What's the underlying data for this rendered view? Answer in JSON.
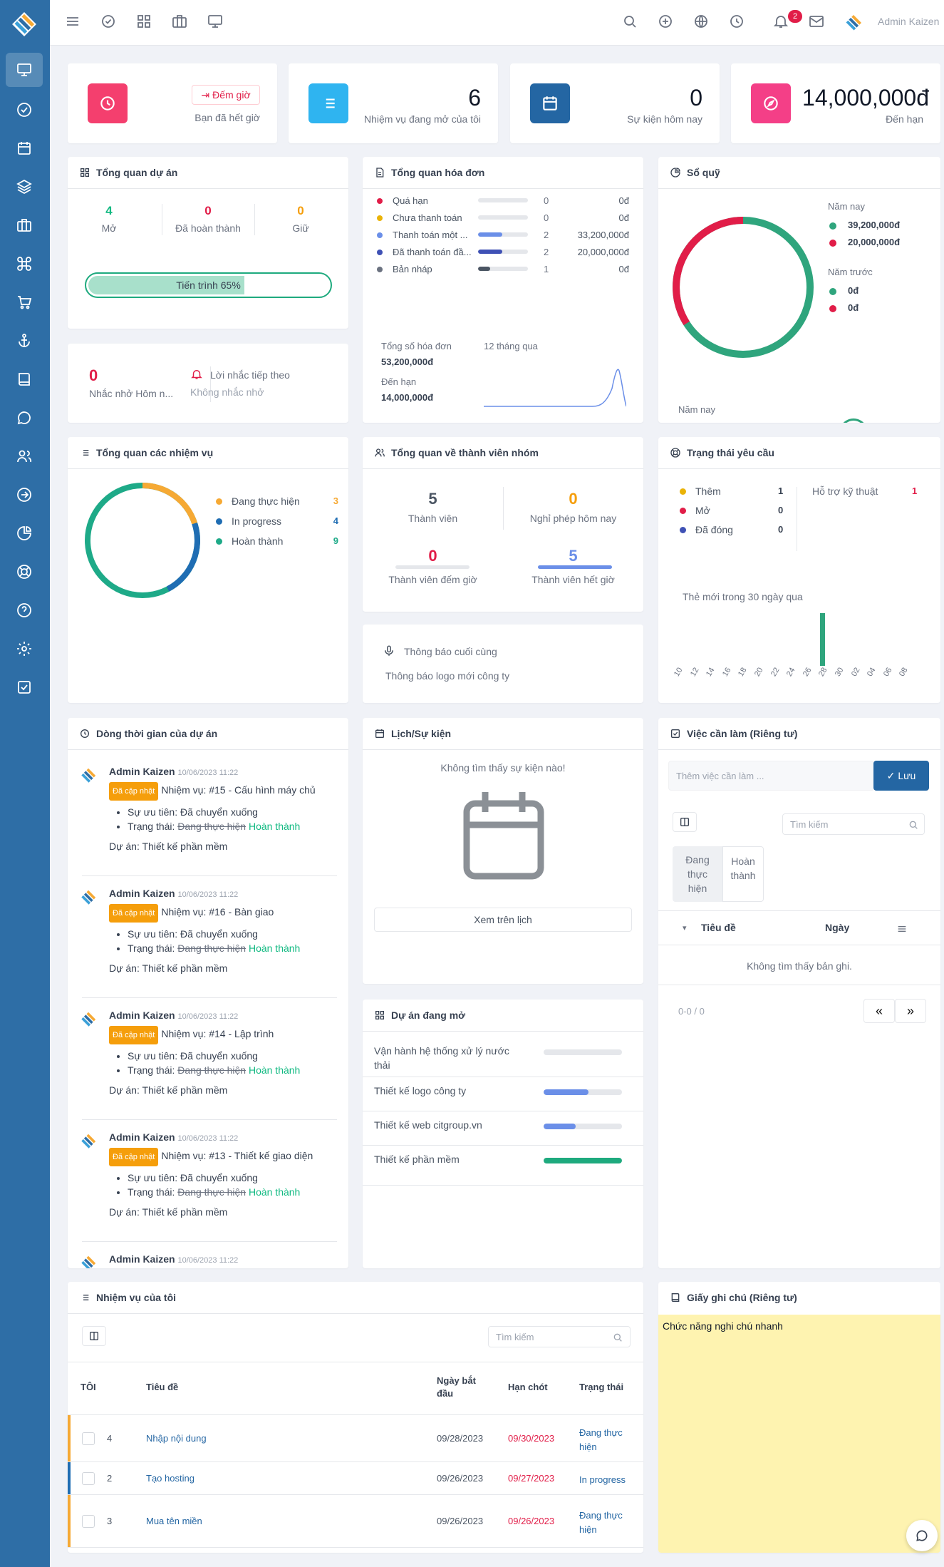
{
  "header": {
    "admin_name": "Admin Kaizen",
    "notification_count": "2"
  },
  "stats": {
    "timer": {
      "button": "Đếm giờ",
      "label": "Bạn đã hết giờ"
    },
    "open_tasks": {
      "value": "6",
      "label": "Nhiệm vụ đang mở của tôi"
    },
    "events_today": {
      "value": "0",
      "label": "Sự kiện hôm nay"
    },
    "due": {
      "value": "14,000,000đ",
      "label": "Đến hạn"
    }
  },
  "project_overview": {
    "title": "Tổng quan dự án",
    "open": {
      "value": "4",
      "label": "Mở"
    },
    "done": {
      "value": "0",
      "label": "Đã hoàn thành"
    },
    "hold": {
      "value": "0",
      "label": "Giữ"
    },
    "progress_label": "Tiến trình 65%",
    "progress": 65
  },
  "reminders": {
    "count": "0",
    "label": "Nhắc nhở Hôm n...",
    "next_title": "Lời nhắc tiếp theo",
    "next_value": "Không nhắc nhở"
  },
  "invoice_overview": {
    "title": "Tổng quan hóa đơn",
    "rows": [
      {
        "label": "Quá hạn",
        "count": "0",
        "amount": "0đ",
        "color": "#e11d48",
        "fill": 0,
        "bar": "#e11d48"
      },
      {
        "label": "Chưa thanh toán",
        "count": "0",
        "amount": "0đ",
        "color": "#eab308",
        "fill": 0,
        "bar": "#eab308"
      },
      {
        "label": "Thanh toán một ...",
        "count": "2",
        "amount": "33,200,000đ",
        "color": "#6b8fe8",
        "fill": 0.48,
        "bar": "#6b8fe8"
      },
      {
        "label": "Đã thanh toán đầ...",
        "count": "2",
        "amount": "20,000,000đ",
        "color": "#3f51b5",
        "fill": 0.48,
        "bar": "#3f51b5"
      },
      {
        "label": "Bản nháp",
        "count": "1",
        "amount": "0đ",
        "color": "#6b7280",
        "fill": 0.24,
        "bar": "#4b5563"
      }
    ],
    "total_label": "Tổng số hóa đơn",
    "total_value": "53,200,000đ",
    "period_label": "12 tháng qua",
    "due_label": "Đến hạn",
    "due_value": "14,000,000đ"
  },
  "cash_book": {
    "title": "Sổ quỹ",
    "this_year_label": "Năm nay",
    "this_year_in": "39,200,000đ",
    "this_year_out": "20,000,000đ",
    "last_year_label": "Năm trước",
    "last_year_in": "0đ",
    "last_year_out": "0đ",
    "footer_label": "Năm nay",
    "in_color": "#2fa57d",
    "out_color": "#e11d48"
  },
  "task_overview": {
    "title": "Tổng quan các nhiệm vụ",
    "items": [
      {
        "label": "Đang thực hiện",
        "value": "3",
        "color": "#f6a934"
      },
      {
        "label": "In progress",
        "value": "4",
        "color": "#1f6db3"
      },
      {
        "label": "Hoàn thành",
        "value": "9",
        "color": "#1eaa88"
      }
    ]
  },
  "team_overview": {
    "title": "Tổng quan về thành viên nhóm",
    "members": {
      "value": "5",
      "label": "Thành viên"
    },
    "leave": {
      "value": "0",
      "label": "Nghỉ phép hôm nay"
    },
    "clocked_in": {
      "value": "0",
      "label": "Thành viên đếm giờ"
    },
    "clocked_out": {
      "value": "5",
      "label": "Thành viên hết giờ"
    }
  },
  "announcement": {
    "title": "Thông báo cuối cùng",
    "text": "Thông báo logo mới công ty"
  },
  "ticket_status": {
    "title": "Trạng thái yêu cầu",
    "items": [
      {
        "label": "Thêm",
        "value": "1",
        "color": "#eab308"
      },
      {
        "label": "Mở",
        "value": "0",
        "color": "#e11d48"
      },
      {
        "label": "Đã đóng",
        "value": "0",
        "color": "#3f51b5"
      }
    ],
    "type_label": "Hỗ trợ kỹ thuật",
    "type_value": "1",
    "chart_caption": "Thẻ mới trong 30 ngày qua",
    "days": [
      "10",
      "12",
      "14",
      "16",
      "18",
      "20",
      "22",
      "24",
      "26",
      "28",
      "30",
      "02",
      "04",
      "06",
      "08"
    ]
  },
  "timeline": {
    "title": "Dòng thời gian của dự án",
    "entries": [
      {
        "user": "Admin Kaizen",
        "time": "10/06/2023 11:22",
        "tag": "Đã cập nhật",
        "task": "Nhiệm vụ: #15 - Cấu hình máy chủ",
        "priority": "Sự ưu tiên: Đã chuyển xuống",
        "status_prefix": "Trạng thái:",
        "status_old": "Đang thực hiện",
        "status_new": "Hoàn thành",
        "project": "Dự án: Thiết kế phần mềm"
      },
      {
        "user": "Admin Kaizen",
        "time": "10/06/2023 11:22",
        "tag": "Đã cập nhật",
        "task": "Nhiệm vụ: #16 - Bàn giao",
        "priority": "Sự ưu tiên: Đã chuyển xuống",
        "status_prefix": "Trạng thái:",
        "status_old": "Đang thực hiện",
        "status_new": "Hoàn thành",
        "project": "Dự án: Thiết kế phần mềm"
      },
      {
        "user": "Admin Kaizen",
        "time": "10/06/2023 11:22",
        "tag": "Đã cập nhật",
        "task": "Nhiệm vụ: #14 - Lập trình",
        "priority": "Sự ưu tiên: Đã chuyển xuống",
        "status_prefix": "Trạng thái:",
        "status_old": "Đang thực hiện",
        "status_new": "Hoàn thành",
        "project": "Dự án: Thiết kế phần mềm"
      },
      {
        "user": "Admin Kaizen",
        "time": "10/06/2023 11:22",
        "tag": "Đã cập nhật",
        "task": "Nhiệm vụ: #13 - Thiết kế giao diện",
        "priority": "Sự ưu tiên: Đã chuyển xuống",
        "status_prefix": "Trạng thái:",
        "status_old": "Đang thực hiện",
        "status_new": "Hoàn thành",
        "project": "Dự án: Thiết kế phần mềm"
      }
    ],
    "partial_user": "Admin Kaizen",
    "partial_time": "10/06/2023 11:22"
  },
  "events": {
    "title": "Lịch/Sự kiện",
    "empty": "Không tìm thấy sự kiện nào!",
    "button": "Xem trên lịch"
  },
  "open_projects": {
    "title": "Dự án đang mở",
    "items": [
      {
        "name": "Vận hành hệ thống xử lý nước thải",
        "progress": 0,
        "color": "#6b8fe8"
      },
      {
        "name": "Thiết kế logo công ty",
        "progress": 0.57,
        "color": "#6b8fe8"
      },
      {
        "name": "Thiết kế web citgroup.vn",
        "progress": 0.41,
        "color": "#6b8fe8"
      },
      {
        "name": "Thiết kế phần mềm",
        "progress": 1,
        "color": "#1eaa7e"
      }
    ]
  },
  "todo": {
    "title": "Việc cần làm (Riêng tư)",
    "placeholder": "Thêm việc cần làm ...",
    "save": "Lưu",
    "search_placeholder": "Tìm kiếm",
    "filter_active": "Đang thực hiện",
    "filter_done": "Hoàn thành",
    "col_title": "Tiêu đề",
    "col_date": "Ngày",
    "empty": "Không tìm thấy bản ghi.",
    "pager": "0-0 / 0",
    "prev": "«",
    "next": "»"
  },
  "my_tasks": {
    "title": "Nhiệm vụ của tôi",
    "search_placeholder": "Tìm kiếm",
    "columns": {
      "id": "TÔI",
      "title": "Tiêu đề",
      "start": "Ngày bắt đầu",
      "deadline": "Hạn chót",
      "status": "Trạng thái"
    },
    "rows": [
      {
        "id": "4",
        "title": "Nhập nội dung",
        "start": "09/28/2023",
        "deadline": "09/30/2023",
        "status": "Đang thực hiện",
        "color": "#f6a934"
      },
      {
        "id": "2",
        "title": "Tạo hosting",
        "start": "09/26/2023",
        "deadline": "09/27/2023",
        "status": "In progress",
        "color": "#1f6db3"
      },
      {
        "id": "3",
        "title": "Mua tên miền",
        "start": "09/26/2023",
        "deadline": "09/26/2023",
        "status": "Đang thực hiện",
        "color": "#f6a934"
      }
    ]
  },
  "sticky_note": {
    "title": "Giấy ghi chú (Riêng tư)",
    "text": "Chức năng nghi chú nhanh",
    "color": "#fef3b0"
  }
}
